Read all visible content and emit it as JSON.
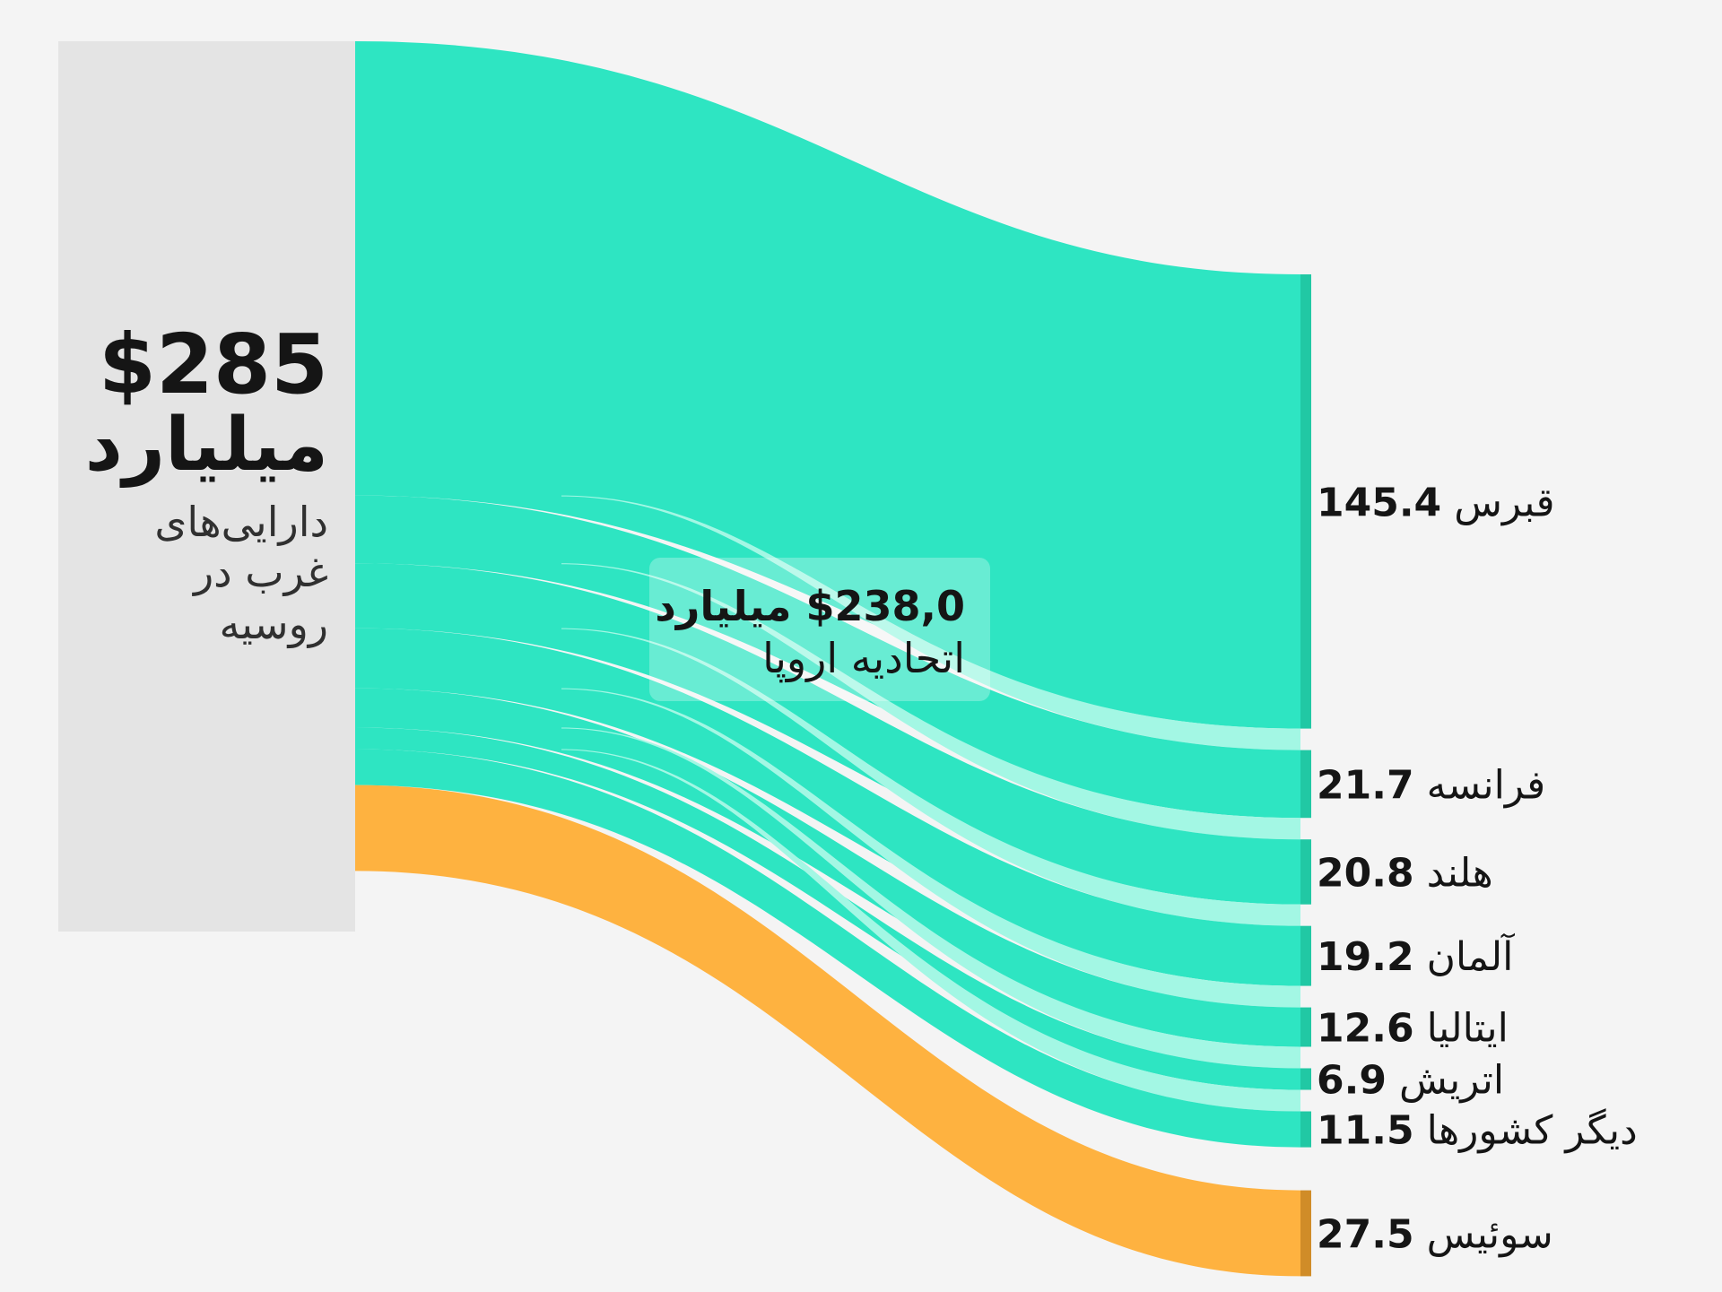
{
  "colors": {
    "background": "#f4f4f4",
    "source_node": "#e4e4e4",
    "eu_flow": "#2ee5c2",
    "eu_flow_separator": "#a3f7e4",
    "eu_node_bar": "#21c8a4",
    "other_flow": "#feb240",
    "other_flow_separator": "#fdeaca",
    "other_node_bar": "#d08c28",
    "text": "#151515"
  },
  "source": {
    "amount": "$285",
    "unit": "میلیارد",
    "description_lines": [
      "دارایی‌های",
      "غرب در",
      "روسیه"
    ]
  },
  "eu_box": {
    "amount": "$238,0 میلیارد",
    "label": "اتحادیه اروپا"
  },
  "chart_data": {
    "type": "sankey",
    "source": {
      "name": "دارایی‌های غرب در روسیه",
      "value": 285
    },
    "groups": [
      {
        "name": "اتحادیه اروپا",
        "value": 238.0,
        "color": "eu"
      },
      {
        "name": "",
        "value": 47.0,
        "color": "other"
      }
    ],
    "targets": [
      {
        "name": "قبرس",
        "value": 145.4,
        "group": "eu",
        "label": "145.4"
      },
      {
        "name": "فرانسه",
        "value": 21.7,
        "group": "eu",
        "label": "21.7"
      },
      {
        "name": "هلند",
        "value": 20.8,
        "group": "eu",
        "label": "20.8"
      },
      {
        "name": "آلمان",
        "value": 19.2,
        "group": "eu",
        "label": "19.2"
      },
      {
        "name": "ایتالیا",
        "value": 12.6,
        "group": "eu",
        "label": "12.6"
      },
      {
        "name": "اتریش",
        "value": 6.9,
        "group": "eu",
        "label": "6.9"
      },
      {
        "name": "دیگر کشورها",
        "value": 11.5,
        "group": "eu",
        "label": "11.5"
      },
      {
        "name": "سوئیس",
        "value": 27.5,
        "group": "other",
        "label": "27.5"
      }
    ]
  }
}
